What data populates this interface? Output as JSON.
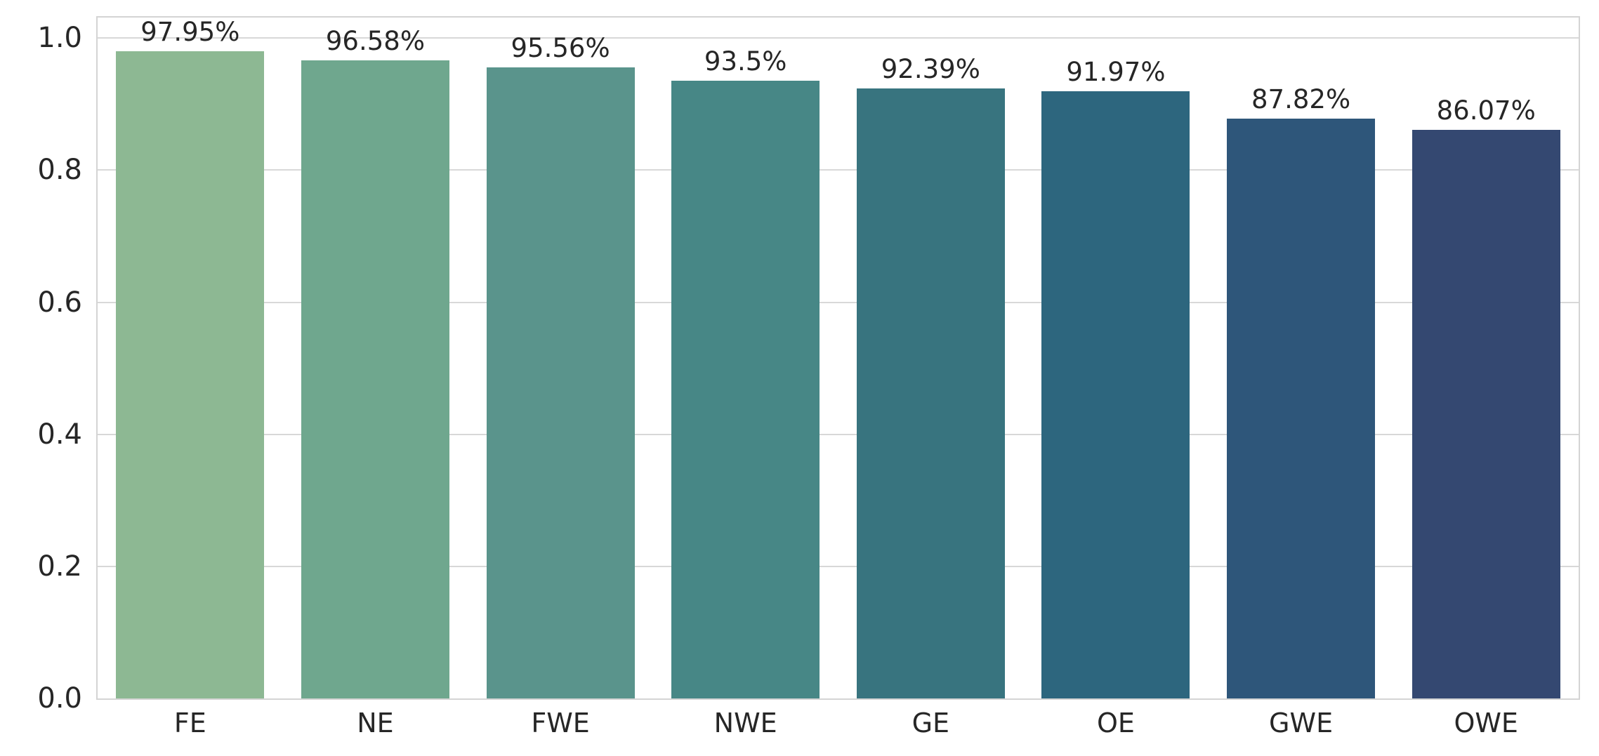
{
  "chart_data": {
    "type": "bar",
    "title": "",
    "xlabel": "",
    "ylabel": "",
    "categories": [
      "FE",
      "NE",
      "FWE",
      "NWE",
      "GE",
      "OE",
      "GWE",
      "OWE"
    ],
    "values": [
      0.9795,
      0.9658,
      0.9556,
      0.935,
      0.9239,
      0.9197,
      0.8782,
      0.8607
    ],
    "display_values": [
      "97.95%",
      "96.58%",
      "95.56%",
      "93.5%",
      "92.39%",
      "91.97%",
      "87.82%",
      "86.07%"
    ],
    "bar_colors": [
      "#8db893",
      "#6fa78e",
      "#5a948c",
      "#478786",
      "#38747f",
      "#2d667e",
      "#2e567a",
      "#344871"
    ],
    "ylim": [
      0,
      1.031
    ],
    "yticks": [
      0.0,
      0.2,
      0.4,
      0.6,
      0.8,
      1.0
    ],
    "ytick_labels": [
      "0.0",
      "0.2",
      "0.4",
      "0.6",
      "0.8",
      "1.0"
    ],
    "grid": "horizontal",
    "legend": "none",
    "bar_width_fraction": 0.8,
    "background": "#ffffff",
    "grid_color": "#d8d8d8",
    "spine_color": "#d4d4d4",
    "text_color": "#262626"
  }
}
